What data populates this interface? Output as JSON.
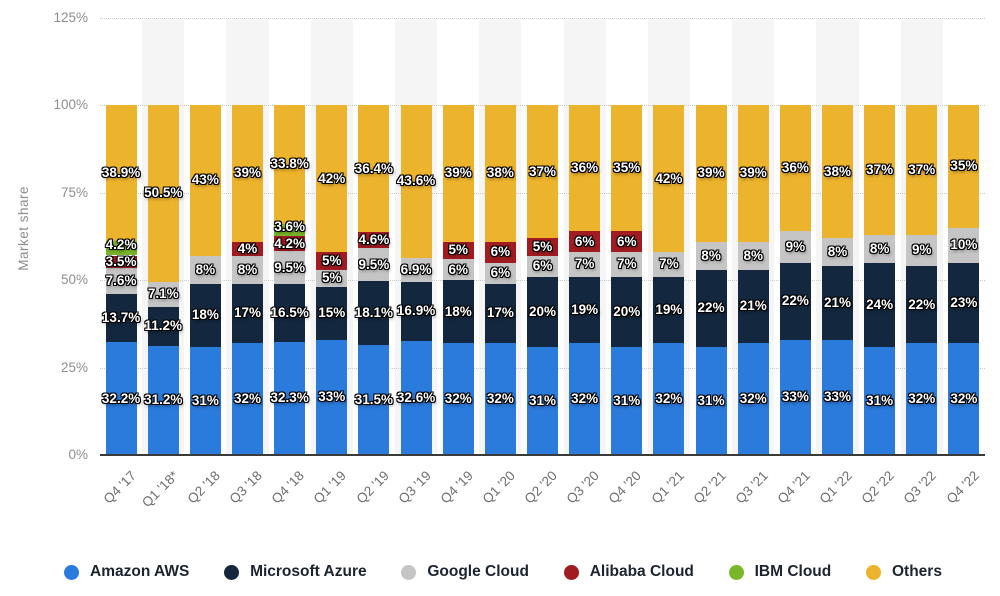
{
  "chart_data": {
    "type": "bar",
    "stacked": true,
    "title": "",
    "ylabel": "Market share",
    "xlabel": "",
    "ylim": [
      0,
      125
    ],
    "grid": "dotted-horizontal",
    "legend_position": "bottom",
    "y_ticks": [
      "0%",
      "25%",
      "50%",
      "75%",
      "100%",
      "125%"
    ],
    "categories": [
      "Q4 '17",
      "Q1 '18*",
      "Q2 '18",
      "Q3 '18",
      "Q4 '18",
      "Q1 '19",
      "Q2 '19",
      "Q3 '19",
      "Q4 '19",
      "Q1 '20",
      "Q2 '20",
      "Q3 '20",
      "Q4 '20",
      "Q1 '21",
      "Q2 '21",
      "Q3 '21",
      "Q4 '21",
      "Q1 '22",
      "Q2 '22",
      "Q3 '22",
      "Q4 '22"
    ],
    "series": [
      {
        "name": "Amazon AWS",
        "color": "#2b7bdc",
        "values": [
          32.2,
          31.2,
          31,
          32,
          32.3,
          33,
          31.5,
          32.6,
          32,
          32,
          31,
          32,
          31,
          32,
          31,
          32,
          33,
          33,
          31,
          32,
          32
        ]
      },
      {
        "name": "Microsoft Azure",
        "color": "#13283f",
        "values": [
          13.7,
          11.2,
          18,
          17,
          16.5,
          15,
          18.1,
          16.9,
          18,
          17,
          20,
          19,
          20,
          19,
          22,
          21,
          22,
          21,
          24,
          22,
          23
        ]
      },
      {
        "name": "Google Cloud",
        "color": "#c5c5c5",
        "values": [
          7.6,
          7.1,
          8,
          8,
          9.5,
          5,
          9.5,
          6.9,
          6,
          6,
          6,
          7,
          7,
          7,
          8,
          8,
          9,
          8,
          8,
          9,
          10
        ]
      },
      {
        "name": "Alibaba Cloud",
        "color": "#a11b20",
        "values": [
          3.5,
          null,
          null,
          4,
          4.2,
          5,
          4.6,
          null,
          5,
          6,
          5,
          6,
          6,
          null,
          null,
          null,
          null,
          null,
          null,
          null,
          null
        ]
      },
      {
        "name": "IBM Cloud",
        "color": "#79b72a",
        "values": [
          4.2,
          null,
          null,
          null,
          3.6,
          null,
          null,
          null,
          null,
          null,
          null,
          null,
          null,
          null,
          null,
          null,
          null,
          null,
          null,
          null,
          null
        ]
      },
      {
        "name": "Others",
        "color": "#ecb32d",
        "values": [
          38.9,
          50.5,
          43,
          39,
          33.8,
          42,
          36.4,
          43.6,
          39,
          38,
          37,
          36,
          35,
          42,
          39,
          39,
          36,
          38,
          37,
          37,
          35
        ]
      }
    ]
  }
}
